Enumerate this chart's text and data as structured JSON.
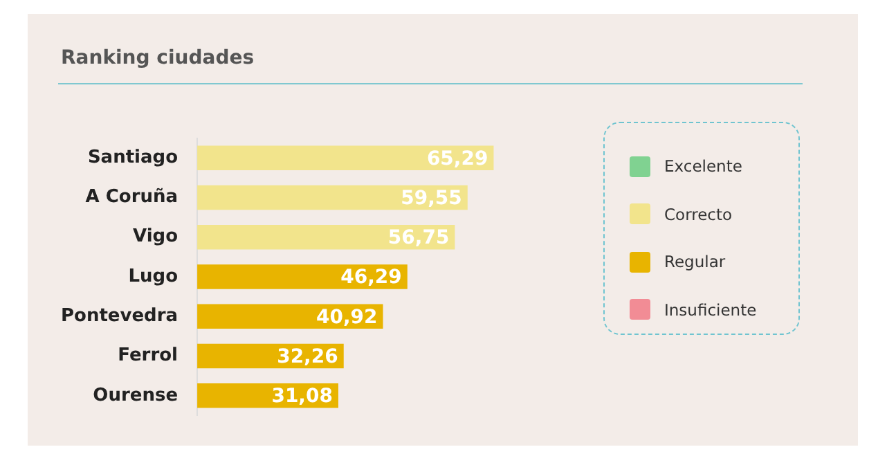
{
  "chart_data": {
    "type": "bar",
    "title": "Ranking ciudades",
    "orientation": "horizontal",
    "stacked": true,
    "legend": "right",
    "grid": false,
    "categories": [
      "Santiago",
      "A Coruña",
      "Vigo",
      "Lugo",
      "Pontevedra",
      "Ferrol",
      "Ourense"
    ],
    "series": [
      {
        "name": "Excelente",
        "color": "#80d291",
        "values": [
          null,
          null,
          null,
          null,
          null,
          null,
          null
        ]
      },
      {
        "name": "Correcto",
        "color": "#f2e48c",
        "values": [
          65.29,
          59.55,
          56.75,
          null,
          null,
          null,
          null
        ],
        "value_labels": [
          "65,29",
          "59,55",
          "56,75",
          null,
          null,
          null,
          null
        ]
      },
      {
        "name": "Regular",
        "color": "#e8b400",
        "values": [
          null,
          null,
          null,
          46.29,
          40.92,
          32.26,
          31.08
        ],
        "value_labels": [
          null,
          null,
          null,
          "46,29",
          "40,92",
          "32,26",
          "31,08"
        ]
      },
      {
        "name": "Insuficiente",
        "color": "#f28c95",
        "values": [
          null,
          null,
          null,
          null,
          null,
          null,
          null
        ]
      }
    ]
  }
}
